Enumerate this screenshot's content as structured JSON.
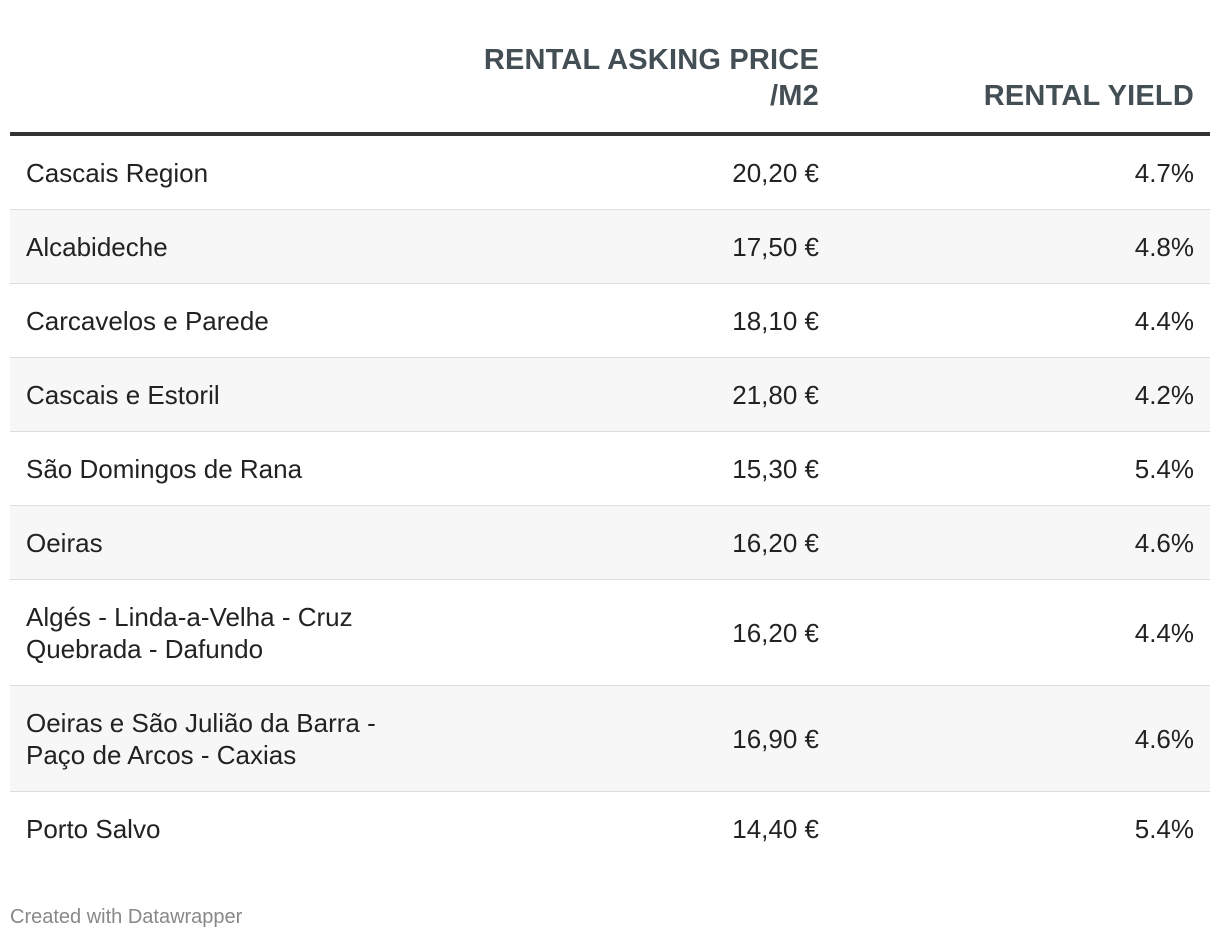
{
  "chart_data": {
    "type": "table",
    "columns": [
      "",
      "RENTAL ASKING PRICE /M2",
      "RENTAL YIELD"
    ],
    "header_price_line1": "RENTAL ASKING PRICE",
    "header_price_line2": "/M2",
    "header_yield": "RENTAL YIELD",
    "rows": [
      {
        "name": "Cascais Region",
        "price": "20,20 €",
        "yield": "4.7%"
      },
      {
        "name": "Alcabideche",
        "price": "17,50 €",
        "yield": "4.8%"
      },
      {
        "name": "Carcavelos e Parede",
        "price": "18,10 €",
        "yield": "4.4%"
      },
      {
        "name": "Cascais e Estoril",
        "price": "21,80 €",
        "yield": "4.2%"
      },
      {
        "name": "São Domingos de Rana",
        "price": "15,30 €",
        "yield": "5.4%"
      },
      {
        "name": "Oeiras",
        "price": "16,20 €",
        "yield": "4.6%"
      },
      {
        "name": "Algés - Linda-a-Velha - Cruz Quebrada - Dafundo",
        "price": "16,20 €",
        "yield": "4.4%"
      },
      {
        "name": "Oeiras e São Julião da Barra - Paço de Arcos - Caxias",
        "price": "16,90 €",
        "yield": "4.6%"
      },
      {
        "name": "Porto Salvo",
        "price": "14,40 €",
        "yield": "5.4%"
      }
    ],
    "price_values": [
      20.2,
      17.5,
      18.1,
      21.8,
      15.3,
      16.2,
      16.2,
      16.9,
      14.4
    ],
    "yield_values": [
      4.7,
      4.8,
      4.4,
      4.2,
      5.4,
      4.6,
      4.4,
      4.6,
      5.4
    ]
  },
  "footer": {
    "credit": "Created with Datawrapper"
  },
  "colors": {
    "header_text": "#444e55",
    "header_rule": "#333333",
    "row_alt_bg": "#f7f7f7",
    "row_divider": "#dddddd",
    "footer_text": "#888888"
  }
}
